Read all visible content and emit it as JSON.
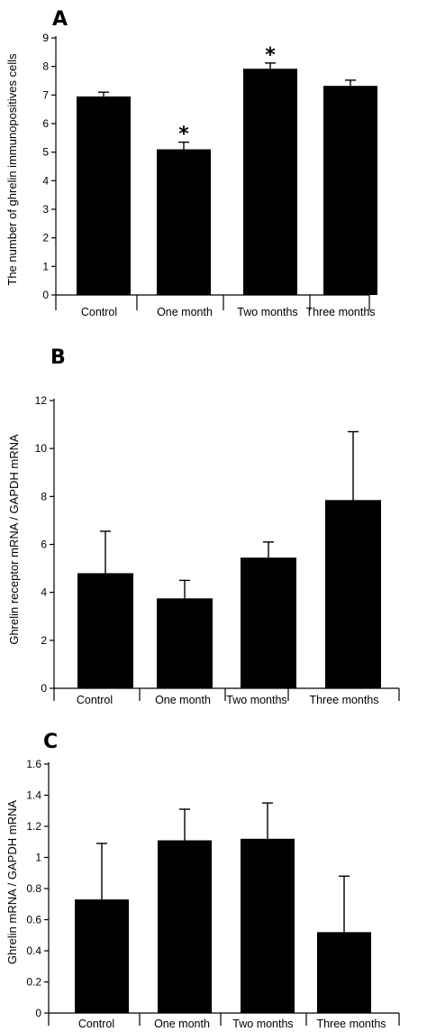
{
  "chart_data": [
    {
      "panel": "A",
      "type": "bar",
      "categories": [
        "Control",
        "One month",
        "Two months",
        "Three months"
      ],
      "values": [
        6.95,
        5.1,
        7.92,
        7.32
      ],
      "errors": [
        0.15,
        0.25,
        0.2,
        0.2
      ],
      "annotations": [
        "",
        "*",
        "*",
        ""
      ],
      "title": "",
      "xlabel": "",
      "ylabel": "The number of ghrelin immunopositives cells",
      "ylim": [
        0,
        9
      ],
      "yticks": [
        "0",
        "1",
        "2",
        "3",
        "4",
        "5",
        "6",
        "7",
        "8",
        "9"
      ],
      "grid": false,
      "legend": "none",
      "bar_color": "#000000"
    },
    {
      "panel": "B",
      "type": "bar",
      "categories": [
        "Control",
        "One month",
        "Two months",
        "Three months"
      ],
      "values": [
        4.8,
        3.75,
        5.45,
        7.85
      ],
      "errors": [
        1.75,
        0.75,
        0.65,
        2.85
      ],
      "annotations": [
        "",
        "",
        "",
        ""
      ],
      "title": "",
      "xlabel": "",
      "ylabel": "Ghrelin receptor mRNA / GAPDH mRNA",
      "ylim": [
        0,
        12
      ],
      "yticks": [
        "0",
        "2",
        "4",
        "6",
        "8",
        "10",
        "12"
      ],
      "grid": false,
      "legend": "none",
      "bar_color": "#000000"
    },
    {
      "panel": "C",
      "type": "bar",
      "categories": [
        "Control",
        "One month",
        "Two months",
        "Three months"
      ],
      "values": [
        0.73,
        1.11,
        1.12,
        0.52
      ],
      "errors": [
        0.36,
        0.2,
        0.23,
        0.36
      ],
      "annotations": [
        "",
        "",
        "",
        ""
      ],
      "title": "",
      "xlabel": "",
      "ylabel": "Ghrelin mRNA / GAPDH mRNA",
      "ylim": [
        0,
        1.6
      ],
      "yticks": [
        "0",
        "0.2",
        "0.4",
        "0.6",
        "0.8",
        "1",
        "1.2",
        "1.4",
        "1.6"
      ],
      "grid": false,
      "legend": "none",
      "bar_color": "#000000"
    }
  ]
}
